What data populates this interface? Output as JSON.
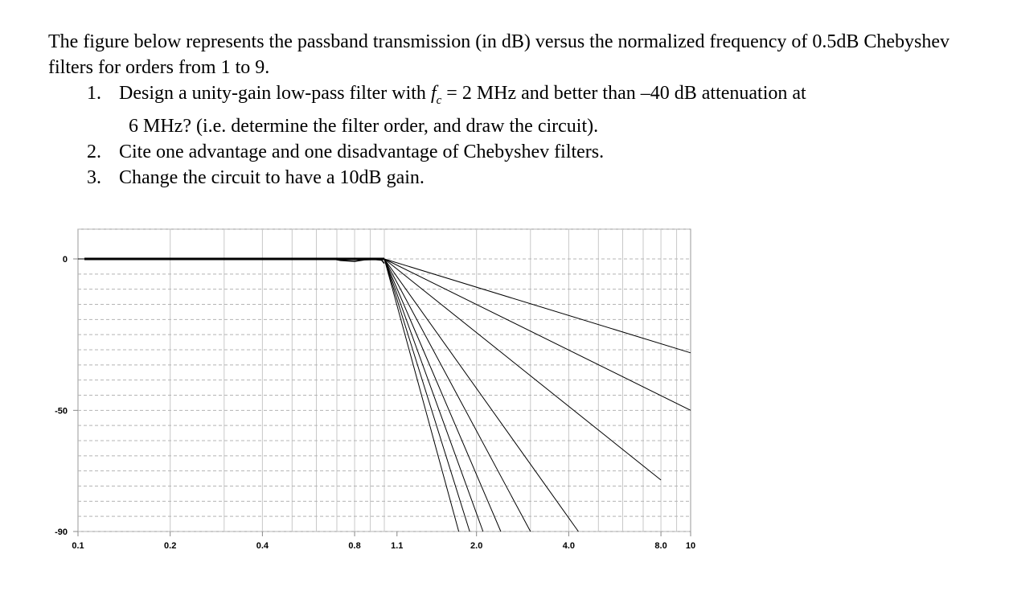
{
  "question": {
    "intro": "The figure below represents the passband transmission (in dB) versus the normalized frequency of 0.5dB Chebyshev filters for orders from 1 to 9.",
    "items": [
      {
        "num": "1.",
        "pre": "Design a unity-gain low-pass filter with ",
        "var": "f",
        "sub": "c",
        "mid": " = 2 MHz and better than –40 dB attenuation at",
        "cont": "6 MHz? (i.e. determine the filter order, and draw the circuit)."
      },
      {
        "num": "2.",
        "text": "Cite one advantage and one disadvantage of Chebyshev filters."
      },
      {
        "num": "3.",
        "text": "Change the circuit to have a 10dB gain."
      }
    ]
  },
  "chart_data": {
    "type": "line",
    "x_scale": "log",
    "xlim": [
      0.1,
      10
    ],
    "ylim": [
      -90,
      0
    ],
    "x_ticks": [
      0.1,
      0.2,
      0.4,
      0.8,
      1.1,
      2.0,
      4.0,
      8.0,
      10
    ],
    "x_tick_labels": [
      "0.1",
      "0.2",
      "0.4",
      "0.8",
      "1.1",
      "2.0",
      "4.0",
      "8.0",
      "10"
    ],
    "y_ticks": [
      0,
      -50,
      -90
    ],
    "y_tick_labels": [
      "0",
      "-50",
      "-90"
    ],
    "grid": true,
    "passband_edge": 1.0,
    "passband_ripple_db": 0.5,
    "series": [
      {
        "order": 1,
        "x": [
          0.1,
          1.0,
          10
        ],
        "y": [
          0,
          0,
          -31
        ]
      },
      {
        "order": 2,
        "x": [
          0.1,
          1.0,
          10
        ],
        "y": [
          0,
          0,
          -50
        ]
      },
      {
        "order": 3,
        "x": [
          0.1,
          1.0,
          8.0
        ],
        "y": [
          0,
          0,
          -73
        ]
      },
      {
        "order": 4,
        "x": [
          0.1,
          1.0,
          4.3
        ],
        "y": [
          0,
          0,
          -90
        ]
      },
      {
        "order": 5,
        "x": [
          0.1,
          1.0,
          3.0
        ],
        "y": [
          0,
          0,
          -90
        ]
      },
      {
        "order": 6,
        "x": [
          0.1,
          1.0,
          2.4
        ],
        "y": [
          0,
          0,
          -90
        ]
      },
      {
        "order": 7,
        "x": [
          0.1,
          1.0,
          2.1
        ],
        "y": [
          0,
          0,
          -90
        ]
      },
      {
        "order": 8,
        "x": [
          0.1,
          1.0,
          1.9
        ],
        "y": [
          0,
          0,
          -90
        ]
      },
      {
        "order": 9,
        "x": [
          0.1,
          1.0,
          1.75
        ],
        "y": [
          0,
          0,
          -90
        ]
      }
    ]
  }
}
